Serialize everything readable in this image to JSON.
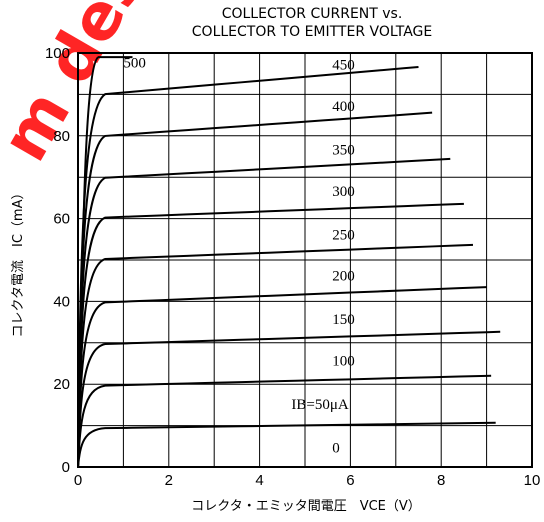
{
  "chart_data": {
    "type": "line",
    "title_lines": [
      "COLLECTOR CURRENT vs.",
      "COLLECTOR TO EMITTER VOLTAGE"
    ],
    "xlabel": "コレクタ・エミッタ間電圧　VCE（V）",
    "ylabel": "コレクタ電流　IC（mA）",
    "xlim": [
      0,
      10
    ],
    "ylim": [
      0,
      100
    ],
    "x_ticks": [
      "0",
      "2",
      "4",
      "6",
      "8",
      "10"
    ],
    "y_ticks": [
      "0",
      "20",
      "40",
      "60",
      "80",
      "100"
    ],
    "grid": true,
    "series": [
      {
        "name": "0",
        "label": "0",
        "x_end": 0,
        "sat": 0.0,
        "slope": 0
      },
      {
        "name": "IB=50μA",
        "label": "IB=50μA",
        "x_end": 9.2,
        "sat": 9.3,
        "slope": 0.15
      },
      {
        "name": "100",
        "label": "100",
        "x_end": 9.1,
        "sat": 19.5,
        "slope": 0.28
      },
      {
        "name": "150",
        "label": "150",
        "x_end": 9.3,
        "sat": 29.5,
        "slope": 0.34
      },
      {
        "name": "200",
        "label": "200",
        "x_end": 9.0,
        "sat": 39.5,
        "slope": 0.44
      },
      {
        "name": "250",
        "label": "250",
        "x_end": 8.7,
        "sat": 50.0,
        "slope": 0.42
      },
      {
        "name": "300",
        "label": "300",
        "x_end": 8.5,
        "sat": 60.0,
        "slope": 0.42
      },
      {
        "name": "350",
        "label": "350",
        "x_end": 8.2,
        "sat": 69.5,
        "slope": 0.6
      },
      {
        "name": "400",
        "label": "400",
        "x_end": 7.8,
        "sat": 79.5,
        "slope": 0.78
      },
      {
        "name": "450",
        "label": "450",
        "x_end": 7.5,
        "sat": 89.5,
        "slope": 0.95
      },
      {
        "name": "500",
        "label": "500",
        "x_end": 1.2,
        "sat": 99.0,
        "slope": 0
      }
    ],
    "curve_labels": [
      {
        "series": "500",
        "x": 1.0,
        "y": 96.5
      },
      {
        "series": "450",
        "x": 5.6,
        "y": 96.0
      },
      {
        "series": "400",
        "x": 5.6,
        "y": 86.0
      },
      {
        "series": "350",
        "x": 5.6,
        "y": 75.5
      },
      {
        "series": "300",
        "x": 5.6,
        "y": 65.5
      },
      {
        "series": "250",
        "x": 5.6,
        "y": 55.0
      },
      {
        "series": "200",
        "x": 5.6,
        "y": 45.0
      },
      {
        "series": "150",
        "x": 5.6,
        "y": 34.5
      },
      {
        "series": "100",
        "x": 5.6,
        "y": 24.5
      },
      {
        "series": "IB=50μA",
        "x": 4.7,
        "y": 14.0
      },
      {
        "series": "0",
        "x": 5.6,
        "y": 3.5
      }
    ]
  },
  "watermark": "m des"
}
